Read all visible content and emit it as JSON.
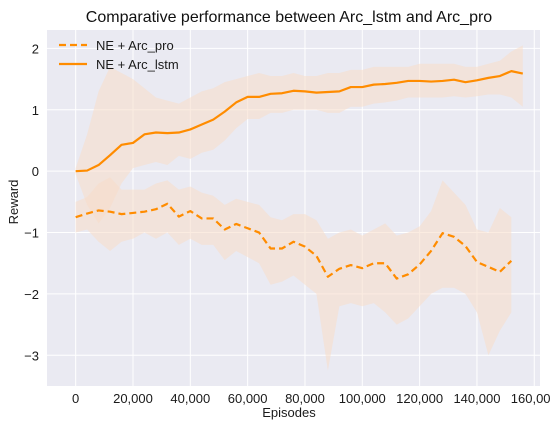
{
  "chart_data": {
    "type": "line",
    "title": "Comparative performance between Arc_lstm and Arc_pro",
    "xlabel": "Episodes",
    "ylabel": "Reward",
    "xlim": [
      -10000,
      162000
    ],
    "ylim": [
      -3.5,
      2.3
    ],
    "x_ticks": [
      0,
      20000,
      40000,
      60000,
      80000,
      100000,
      120000,
      140000,
      160000
    ],
    "x_tick_labels": [
      "0",
      "20,000",
      "40,000",
      "60,000",
      "80,000",
      "100,000",
      "120,000",
      "140,000",
      "160,000"
    ],
    "y_ticks": [
      -3,
      -2,
      -1,
      0,
      1,
      2
    ],
    "y_tick_labels": [
      "−3",
      "−2",
      "−1",
      "0",
      "1",
      "2"
    ],
    "grid": true,
    "legend_position": "top-left",
    "colors": {
      "line": "#ff8c00",
      "band": "#f7dcc8",
      "background": "#eaeaf2",
      "grid": "#ffffff"
    },
    "series": [
      {
        "name": "NE + Arc_pro",
        "style": "dashed",
        "x": [
          0,
          4000,
          8000,
          12000,
          16000,
          20000,
          24000,
          28000,
          32000,
          36000,
          40000,
          44000,
          48000,
          52000,
          56000,
          60000,
          64000,
          68000,
          72000,
          76000,
          80000,
          84000,
          88000,
          92000,
          96000,
          100000,
          104000,
          108000,
          112000,
          116000,
          120000,
          124000,
          128000,
          132000,
          136000,
          140000,
          144000,
          148000,
          152000
        ],
        "values": [
          -0.75,
          -0.69,
          -0.64,
          -0.66,
          -0.7,
          -0.68,
          -0.66,
          -0.62,
          -0.53,
          -0.74,
          -0.65,
          -0.77,
          -0.77,
          -0.95,
          -0.86,
          -0.93,
          -1.0,
          -1.26,
          -1.26,
          -1.15,
          -1.23,
          -1.38,
          -1.72,
          -1.59,
          -1.53,
          -1.58,
          -1.5,
          -1.5,
          -1.75,
          -1.68,
          -1.52,
          -1.3,
          -1.01,
          -1.07,
          -1.22,
          -1.48,
          -1.56,
          -1.64,
          -1.46
        ],
        "upper": [
          -0.5,
          -0.42,
          -0.2,
          -0.1,
          -0.3,
          -0.3,
          -0.3,
          -0.2,
          -0.15,
          -0.3,
          -0.25,
          -0.35,
          -0.4,
          -0.55,
          -0.45,
          -0.5,
          -0.55,
          -0.75,
          -0.8,
          -0.7,
          -0.7,
          -0.8,
          -1.1,
          -1.0,
          -0.95,
          -1.05,
          -0.95,
          -0.85,
          -1.05,
          -1.0,
          -0.9,
          -0.65,
          -0.15,
          -0.35,
          -0.55,
          -0.95,
          -1.0,
          -0.6,
          -0.75
        ],
        "lower": [
          -1.0,
          -0.95,
          -1.15,
          -1.3,
          -1.15,
          -1.1,
          -1.0,
          -1.1,
          -1.0,
          -1.2,
          -1.1,
          -1.2,
          -1.2,
          -1.45,
          -1.3,
          -1.4,
          -1.5,
          -1.85,
          -1.8,
          -1.7,
          -1.85,
          -2.0,
          -3.25,
          -2.2,
          -2.15,
          -2.2,
          -2.15,
          -2.3,
          -2.5,
          -2.4,
          -2.2,
          -2.0,
          -1.9,
          -1.9,
          -2.0,
          -2.3,
          -3.0,
          -2.6,
          -2.3
        ]
      },
      {
        "name": "NE + Arc_lstm",
        "style": "solid",
        "x": [
          0,
          4000,
          8000,
          12000,
          16000,
          20000,
          24000,
          28000,
          32000,
          36000,
          40000,
          44000,
          48000,
          52000,
          56000,
          60000,
          64000,
          68000,
          72000,
          76000,
          80000,
          84000,
          88000,
          92000,
          96000,
          100000,
          104000,
          108000,
          112000,
          116000,
          120000,
          124000,
          128000,
          132000,
          136000,
          140000,
          144000,
          148000,
          152000,
          156000
        ],
        "values": [
          0.0,
          0.01,
          0.1,
          0.26,
          0.43,
          0.46,
          0.6,
          0.63,
          0.62,
          0.63,
          0.68,
          0.76,
          0.84,
          0.97,
          1.12,
          1.21,
          1.21,
          1.26,
          1.27,
          1.31,
          1.3,
          1.28,
          1.29,
          1.3,
          1.37,
          1.37,
          1.41,
          1.42,
          1.44,
          1.47,
          1.47,
          1.46,
          1.47,
          1.49,
          1.45,
          1.48,
          1.52,
          1.55,
          1.63,
          1.59
        ],
        "upper": [
          0.05,
          0.6,
          1.3,
          1.7,
          1.6,
          1.5,
          1.35,
          1.2,
          1.15,
          1.1,
          1.2,
          1.3,
          1.35,
          1.45,
          1.5,
          1.55,
          1.6,
          1.55,
          1.55,
          1.6,
          1.55,
          1.55,
          1.6,
          1.6,
          1.65,
          1.65,
          1.7,
          1.7,
          1.7,
          1.7,
          1.75,
          1.75,
          1.75,
          1.75,
          1.7,
          1.7,
          1.75,
          1.8,
          1.95,
          2.05
        ],
        "lower": [
          -0.05,
          -0.55,
          -0.85,
          -0.6,
          -0.2,
          0.05,
          0.1,
          0.15,
          0.1,
          0.25,
          0.2,
          0.3,
          0.35,
          0.5,
          0.7,
          0.85,
          0.85,
          0.95,
          0.95,
          1.0,
          1.0,
          1.0,
          0.95,
          0.95,
          1.05,
          1.05,
          1.1,
          1.12,
          1.15,
          1.2,
          1.2,
          1.2,
          1.2,
          1.22,
          1.2,
          1.22,
          1.25,
          1.25,
          1.2,
          1.05
        ]
      }
    ]
  }
}
